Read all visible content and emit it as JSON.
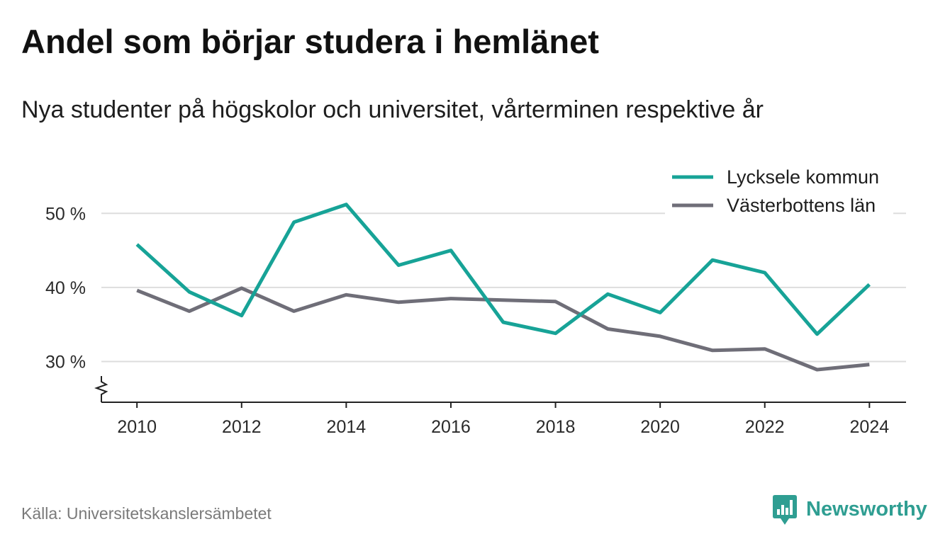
{
  "chart_data": {
    "type": "line",
    "title": "Andel som börjar studera i hemlänet",
    "subtitle": "Nya studenter på högskolor och universitet, vårterminen respektive år",
    "x": [
      2010,
      2011,
      2012,
      2013,
      2014,
      2015,
      2016,
      2017,
      2018,
      2019,
      2020,
      2021,
      2022,
      2023,
      2024
    ],
    "series": [
      {
        "name": "Lycksele kommun",
        "color": "#17a397",
        "values": [
          45.8,
          39.4,
          36.2,
          48.8,
          51.2,
          43.0,
          45.0,
          35.3,
          33.8,
          39.1,
          36.6,
          43.7,
          42.0,
          33.7,
          40.4
        ]
      },
      {
        "name": "Västerbottens län",
        "color": "#6f6e78",
        "values": [
          39.6,
          36.8,
          39.9,
          36.8,
          39.0,
          38.0,
          38.5,
          38.3,
          38.1,
          34.4,
          33.4,
          31.5,
          31.7,
          28.9,
          29.6
        ]
      }
    ],
    "xticks": [
      2010,
      2012,
      2014,
      2016,
      2018,
      2020,
      2022,
      2024
    ],
    "xtick_labels": [
      "2010",
      "2012",
      "2014",
      "2016",
      "2018",
      "2020",
      "2022",
      "2024"
    ],
    "yticks": [
      30,
      40,
      50
    ],
    "ytick_labels": [
      "30 %",
      "40 %",
      "50 %"
    ],
    "xlim": [
      2009.32,
      2024.7
    ],
    "ylim": [
      24.5,
      55
    ],
    "grid": "horizontal",
    "legend": "top-right",
    "y_axis_break": true
  },
  "source": "Källa: Universitetskanslersämbetet",
  "brand": {
    "name": "Newsworthy",
    "icon": "newsworthy-logo-icon"
  },
  "colors": {
    "grid": "#dddddd",
    "axis": "#222222",
    "brand": "#2f9e92"
  }
}
